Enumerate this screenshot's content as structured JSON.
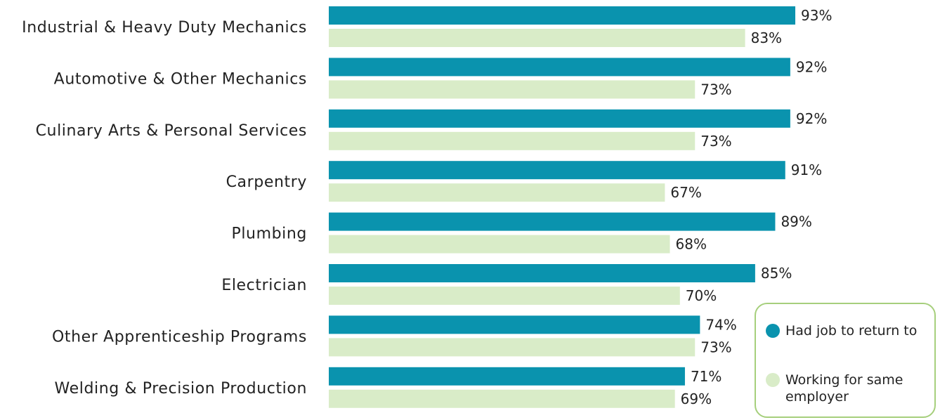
{
  "chart_data": {
    "type": "bar",
    "orientation": "horizontal",
    "title": "",
    "xlabel": "",
    "ylabel": "",
    "xlim": [
      0,
      100
    ],
    "grid": false,
    "legend_position": "bottom-right",
    "value_suffix": "%",
    "categories": [
      "Industrial & Heavy Duty Mechanics",
      "Automotive & Other Mechanics",
      "Culinary Arts & Personal Services",
      "Carpentry",
      "Plumbing",
      "Electrician",
      "Other Apprenticeship Programs",
      "Welding & Precision Production"
    ],
    "series": [
      {
        "name": "Had job to return to",
        "color": "#0a93ae",
        "values": [
          93,
          92,
          92,
          91,
          89,
          85,
          74,
          71
        ]
      },
      {
        "name": "Working for same employer",
        "color": "#d9ecc8",
        "values": [
          83,
          73,
          73,
          67,
          68,
          70,
          73,
          69
        ]
      }
    ]
  },
  "legend": {
    "items": [
      {
        "label": "Had job to return to",
        "color": "#0a93ae"
      },
      {
        "label": "Working for same employer",
        "color": "#d9ecc8"
      }
    ]
  }
}
